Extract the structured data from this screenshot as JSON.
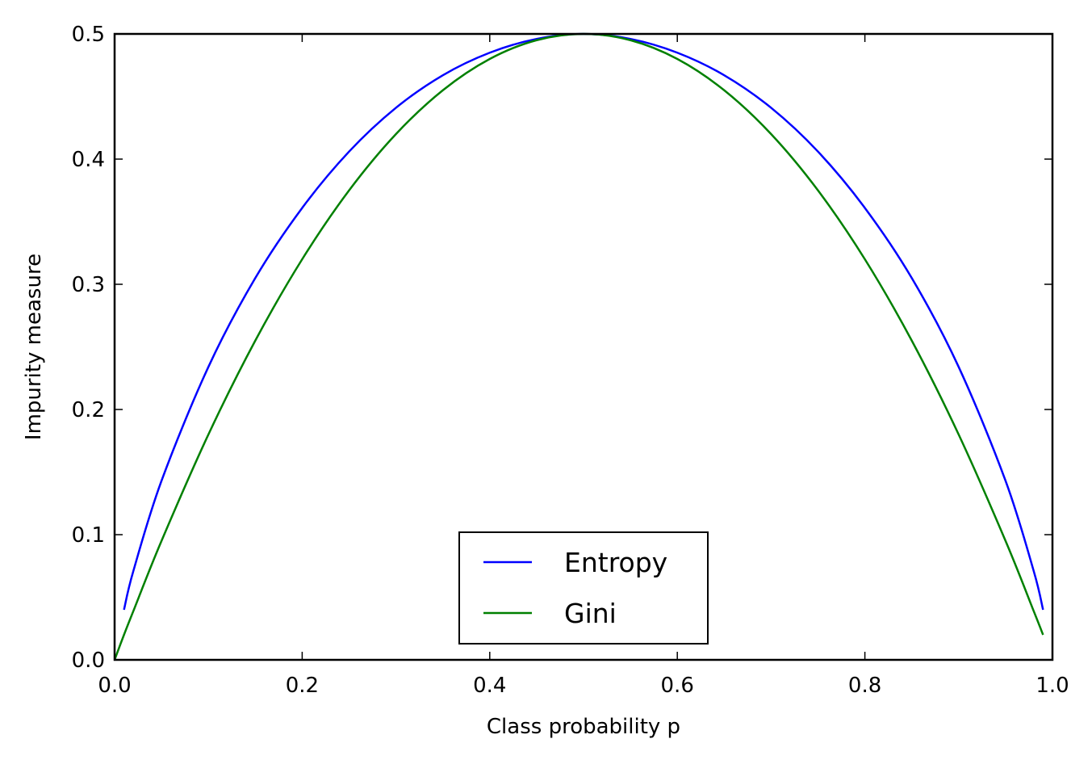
{
  "chart_data": {
    "type": "line",
    "xlabel": "Class probability p",
    "ylabel": "Impurity measure",
    "xlim": [
      0.0,
      1.0
    ],
    "ylim": [
      0.0,
      0.5
    ],
    "xticks": [
      "0.0",
      "0.2",
      "0.4",
      "0.6",
      "0.8",
      "1.0"
    ],
    "yticks": [
      "0.0",
      "0.1",
      "0.2",
      "0.3",
      "0.4",
      "0.5"
    ],
    "grid": false,
    "legend_position": "lower center",
    "x": [
      0.01,
      0.02,
      0.05,
      0.1,
      0.15,
      0.2,
      0.25,
      0.3,
      0.35,
      0.4,
      0.45,
      0.5,
      0.55,
      0.6,
      0.65,
      0.7,
      0.75,
      0.8,
      0.85,
      0.9,
      0.95,
      0.98,
      0.99
    ],
    "series": [
      {
        "name": "Entropy",
        "color": "#0000ff",
        "x": [
          0.01,
          0.02,
          0.05,
          0.1,
          0.15,
          0.2,
          0.25,
          0.3,
          0.35,
          0.4,
          0.45,
          0.5,
          0.55,
          0.6,
          0.65,
          0.7,
          0.75,
          0.8,
          0.85,
          0.9,
          0.95,
          0.98,
          0.99
        ],
        "values": [
          0.04,
          0.071,
          0.143,
          0.234,
          0.305,
          0.361,
          0.406,
          0.441,
          0.467,
          0.485,
          0.496,
          0.5,
          0.496,
          0.485,
          0.467,
          0.441,
          0.406,
          0.361,
          0.305,
          0.234,
          0.143,
          0.071,
          0.04
        ]
      },
      {
        "name": "Gini",
        "color": "#008000",
        "x": [
          0.0,
          0.01,
          0.02,
          0.05,
          0.1,
          0.15,
          0.2,
          0.25,
          0.3,
          0.35,
          0.4,
          0.45,
          0.5,
          0.55,
          0.6,
          0.65,
          0.7,
          0.75,
          0.8,
          0.85,
          0.9,
          0.95,
          0.98,
          0.99
        ],
        "values": [
          0.0,
          0.02,
          0.039,
          0.095,
          0.18,
          0.255,
          0.32,
          0.375,
          0.42,
          0.455,
          0.48,
          0.495,
          0.5,
          0.495,
          0.48,
          0.455,
          0.42,
          0.375,
          0.32,
          0.255,
          0.18,
          0.095,
          0.039,
          0.02
        ]
      }
    ]
  }
}
